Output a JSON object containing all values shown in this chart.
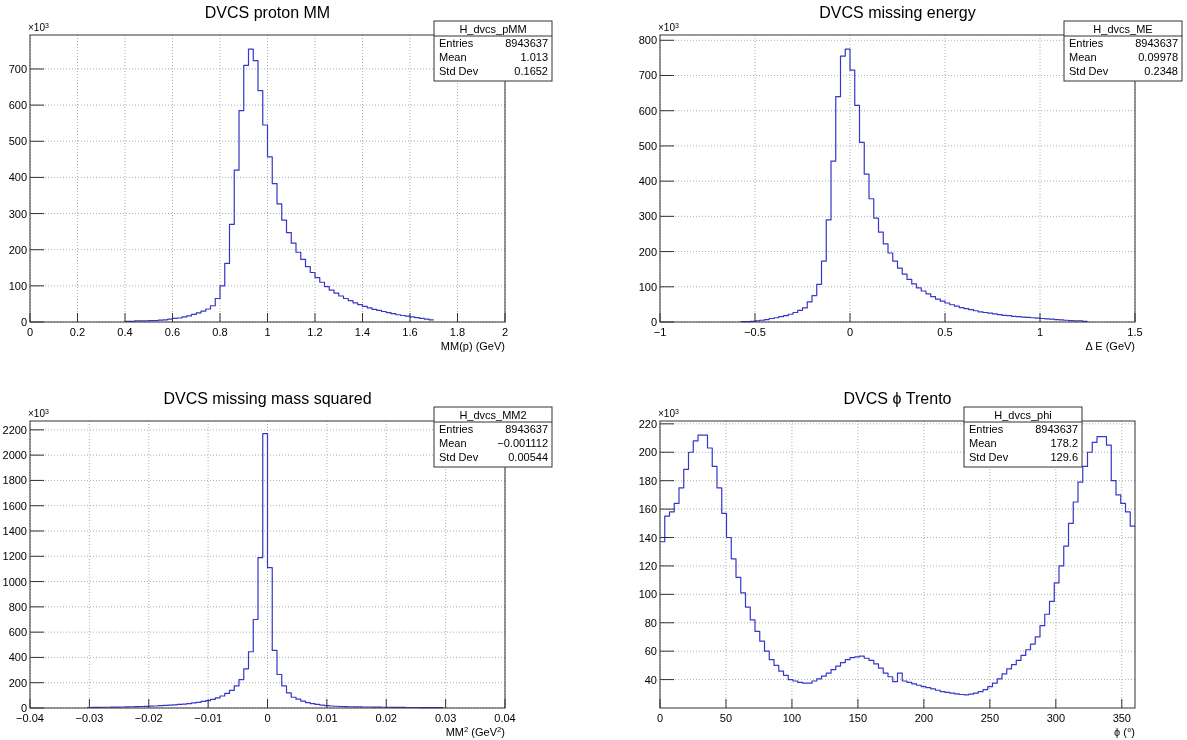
{
  "chart_data": [
    {
      "type": "histogram",
      "title": "DVCS proton MM",
      "xlabel": "MM(p) (GeV)",
      "ylabel": "×10$^{3}$",
      "color": "#3636c8",
      "grid": true,
      "annotations": [
        "H_dvcs_pMM",
        "Entries",
        "8943637",
        "Mean",
        "1.013",
        "Std Dev",
        "0.1652"
      ],
      "xlim": [
        0,
        2
      ],
      "xticks": [
        0,
        0.2,
        0.4,
        0.6,
        0.8,
        1,
        1.2,
        1.4,
        1.6,
        1.8,
        2
      ],
      "ylim": [
        0,
        794
      ],
      "yticks": [
        0,
        100,
        200,
        300,
        400,
        500,
        600,
        700
      ],
      "bins": [
        0.4,
        0.42,
        0.44,
        0.46,
        0.48,
        0.5,
        0.52,
        0.54,
        0.56,
        0.58,
        0.6,
        0.62,
        0.64,
        0.66,
        0.68,
        0.7,
        0.72,
        0.74,
        0.76,
        0.78,
        0.8,
        0.82,
        0.84,
        0.86,
        0.88,
        0.9,
        0.92,
        0.94,
        0.96,
        0.98,
        1,
        1.02,
        1.04,
        1.06,
        1.08,
        1.1,
        1.12,
        1.14,
        1.16,
        1.18,
        1.2,
        1.22,
        1.24,
        1.26,
        1.28,
        1.3,
        1.32,
        1.34,
        1.36,
        1.38,
        1.4,
        1.42,
        1.44,
        1.46,
        1.48,
        1.5,
        1.52,
        1.54,
        1.56,
        1.58,
        1.6,
        1.62,
        1.64,
        1.66,
        1.68,
        1.7
      ],
      "values": [
        2,
        2,
        3,
        3,
        3,
        4,
        4,
        5,
        6,
        8,
        10,
        11,
        14,
        17,
        21,
        25,
        30,
        36,
        45,
        65,
        100,
        162,
        270,
        420,
        585,
        710,
        755,
        723,
        640,
        545,
        457,
        383,
        327,
        282,
        247,
        218,
        193,
        173,
        153,
        137,
        123,
        110,
        98,
        88,
        80,
        72,
        65,
        59,
        53,
        48,
        43,
        39,
        35,
        32,
        29,
        26,
        23,
        20,
        18,
        16,
        14,
        12,
        10,
        8,
        6
      ]
    },
    {
      "type": "histogram",
      "title": "DVCS missing energy",
      "xlabel": "Δ E (GeV)",
      "ylabel": "×10$^{3}$",
      "color": "#3636c8",
      "grid": true,
      "annotations": [
        "H_dvcs_ME",
        "Entries",
        "8943637",
        "Mean",
        "0.09978",
        "Std Dev",
        "0.2348"
      ],
      "xlim": [
        -1,
        1.5
      ],
      "xticks": [
        {
          "value": -1,
          "label": "−1"
        },
        {
          "value": -0.5,
          "label": "−0.5"
        },
        0,
        0.5,
        1,
        1.5
      ],
      "ylim": [
        0,
        815
      ],
      "yticks": [
        0,
        100,
        200,
        300,
        400,
        500,
        600,
        700,
        800
      ],
      "bins": [
        -0.575,
        -0.55,
        -0.525,
        -0.5,
        -0.475,
        -0.45,
        -0.425,
        -0.4,
        -0.375,
        -0.35,
        -0.325,
        -0.3,
        -0.275,
        -0.25,
        -0.225,
        -0.2,
        -0.175,
        -0.15,
        -0.125,
        -0.1,
        -0.075,
        -0.05,
        -0.025,
        0,
        0.025,
        0.05,
        0.075,
        0.1,
        0.125,
        0.15,
        0.175,
        0.2,
        0.225,
        0.25,
        0.275,
        0.3,
        0.325,
        0.35,
        0.375,
        0.4,
        0.425,
        0.45,
        0.475,
        0.5,
        0.525,
        0.55,
        0.575,
        0.6,
        0.625,
        0.65,
        0.675,
        0.7,
        0.725,
        0.75,
        0.775,
        0.8,
        0.825,
        0.85,
        0.875,
        0.9,
        0.925,
        0.95,
        0.975,
        1,
        1.025,
        1.05,
        1.075,
        1.1,
        1.125,
        1.15,
        1.175,
        1.2,
        1.225,
        1.25
      ],
      "values": [
        1,
        1,
        2,
        3,
        5,
        7,
        10,
        12,
        15,
        18,
        22,
        27,
        33,
        40,
        57,
        75,
        107,
        173,
        290,
        457,
        640,
        755,
        775,
        715,
        615,
        510,
        420,
        350,
        295,
        255,
        222,
        196,
        173,
        153,
        136,
        121,
        108,
        97,
        88,
        80,
        72,
        65,
        59,
        54,
        49,
        45,
        41,
        38,
        35,
        32,
        29,
        27,
        25,
        23,
        21,
        19,
        18,
        16,
        15,
        14,
        13,
        12,
        11,
        10,
        9,
        8,
        7,
        6,
        5,
        4,
        3,
        3,
        2
      ]
    },
    {
      "type": "histogram",
      "title": "DVCS missing mass squared",
      "xlabel": "MM$^{2}$ (GeV$^{2}$)",
      "ylabel": "×10$^{3}$",
      "color": "#3636c8",
      "grid": true,
      "annotations": [
        "H_dvcs_MM2",
        "Entries",
        "8943637",
        "Mean",
        "−0.001112",
        "Std Dev",
        "0.00544"
      ],
      "xlim": [
        -0.04,
        0.04
      ],
      "xticks": [
        {
          "value": -0.04,
          "label": "−0.04"
        },
        {
          "value": -0.03,
          "label": "−0.03"
        },
        {
          "value": -0.02,
          "label": "−0.02"
        },
        {
          "value": -0.01,
          "label": "−0.01"
        },
        0,
        0.01,
        0.02,
        0.03,
        0.04
      ],
      "ylim": [
        0,
        2270
      ],
      "yticks": [
        0,
        200,
        400,
        600,
        800,
        1000,
        1200,
        1400,
        1600,
        1800,
        2000,
        2200
      ],
      "bins": [
        -0.0304,
        -0.0296,
        -0.0288,
        -0.028,
        -0.0272,
        -0.0264,
        -0.0256,
        -0.0248,
        -0.024,
        -0.0232,
        -0.0224,
        -0.0216,
        -0.0208,
        -0.02,
        -0.0192,
        -0.0184,
        -0.0176,
        -0.0168,
        -0.016,
        -0.0152,
        -0.0144,
        -0.0136,
        -0.0128,
        -0.012,
        -0.0112,
        -0.0104,
        -0.0096,
        -0.0088,
        -0.008,
        -0.0072,
        -0.0064,
        -0.0056,
        -0.0048,
        -0.004,
        -0.0032,
        -0.0024,
        -0.0016,
        -0.0008,
        0,
        0.0008,
        0.0016,
        0.0024,
        0.0032,
        0.004,
        0.0048,
        0.0056,
        0.0064,
        0.0072,
        0.008,
        0.0088,
        0.0096,
        0.0104,
        0.0112,
        0.012,
        0.0128,
        0.0136,
        0.0144,
        0.0152,
        0.016,
        0.0168,
        0.0176,
        0.0184,
        0.0192,
        0.02,
        0.0208,
        0.0216,
        0.0224,
        0.0232,
        0.024,
        0.0248,
        0.0256,
        0.0264,
        0.0272,
        0.028,
        0.0288,
        0.0296
      ],
      "values": [
        4,
        5,
        5,
        6,
        6,
        7,
        7,
        8,
        9,
        10,
        11,
        12,
        13,
        15,
        16,
        18,
        20,
        22,
        25,
        28,
        31,
        35,
        40,
        45,
        52,
        58,
        68,
        80,
        95,
        115,
        140,
        175,
        225,
        310,
        445,
        700,
        1190,
        2170,
        1110,
        455,
        265,
        175,
        120,
        85,
        70,
        55,
        43,
        35,
        28,
        23,
        19,
        16,
        14,
        12,
        11,
        10,
        9,
        9,
        8,
        8,
        7,
        7,
        6,
        6,
        5,
        5,
        5,
        4,
        4,
        4,
        3,
        3,
        3,
        3,
        3
      ]
    },
    {
      "type": "histogram",
      "title": "DVCS ϕ Trento",
      "xlabel": "ϕ (°)",
      "ylabel": "×10$^{3}$",
      "color": "#3636c8",
      "grid": true,
      "annotations": [
        "H_dvcs_phi",
        "Entries",
        "8943637",
        "Mean",
        "178.2",
        "Std Dev",
        "129.6"
      ],
      "xlim": [
        0,
        360
      ],
      "xticks": [
        0,
        50,
        100,
        150,
        200,
        250,
        300,
        350
      ],
      "ylim": [
        20,
        222
      ],
      "yticks": [
        40,
        60,
        80,
        100,
        120,
        140,
        160,
        180,
        200,
        220
      ],
      "bins": [
        0,
        3.6,
        7.2,
        10.8,
        14.4,
        18,
        21.6,
        25.2,
        28.8,
        32.4,
        36,
        39.6,
        43.2,
        46.8,
        50.4,
        54,
        57.6,
        61.2,
        64.8,
        68.4,
        72,
        75.6,
        79.2,
        82.8,
        86.4,
        90,
        93.6,
        97.2,
        100.8,
        104.4,
        108,
        111.6,
        115.2,
        118.8,
        122.4,
        126,
        129.6,
        133.2,
        136.8,
        140.4,
        144,
        147.6,
        151.2,
        154.8,
        158.4,
        162,
        165.6,
        169.2,
        172.8,
        176.4,
        180,
        183.6,
        187.2,
        190.8,
        194.4,
        198,
        201.6,
        205.2,
        208.8,
        212.4,
        216,
        219.6,
        223.2,
        226.8,
        230.4,
        234,
        237.6,
        241.2,
        244.8,
        248.4,
        252,
        255.6,
        259.2,
        262.8,
        266.4,
        270,
        273.6,
        277.2,
        280.8,
        284.4,
        288,
        291.6,
        295.2,
        298.8,
        302.4,
        306,
        309.6,
        313.2,
        316.8,
        320.4,
        324,
        327.6,
        331.2,
        334.8,
        338.4,
        342,
        345.6,
        349.2,
        352.8,
        356.4,
        360
      ],
      "values": [
        137,
        155,
        158,
        164,
        175,
        188,
        200,
        208,
        212,
        212,
        203,
        190,
        175,
        157,
        140,
        125,
        112,
        101,
        91,
        82,
        74,
        67,
        60,
        54,
        50,
        46,
        43,
        40,
        39,
        38,
        37.5,
        37.5,
        39,
        40.5,
        42.5,
        44.5,
        47,
        49.5,
        52,
        54,
        55.5,
        56,
        56.5,
        55,
        53.5,
        51,
        48,
        44.5,
        42,
        38.5,
        44.5,
        39,
        38,
        37,
        36,
        35,
        34.3,
        33.5,
        32.5,
        31.5,
        31,
        30.5,
        30,
        29.5,
        29.3,
        29.8,
        30.5,
        31.5,
        33,
        35,
        37.5,
        40.5,
        44,
        47.5,
        50.5,
        53.5,
        57,
        61,
        65,
        70,
        78,
        86,
        95,
        108,
        120,
        134,
        150,
        165,
        179,
        190,
        200,
        207,
        211,
        211,
        205,
        180,
        170,
        164,
        158,
        148
      ]
    }
  ]
}
